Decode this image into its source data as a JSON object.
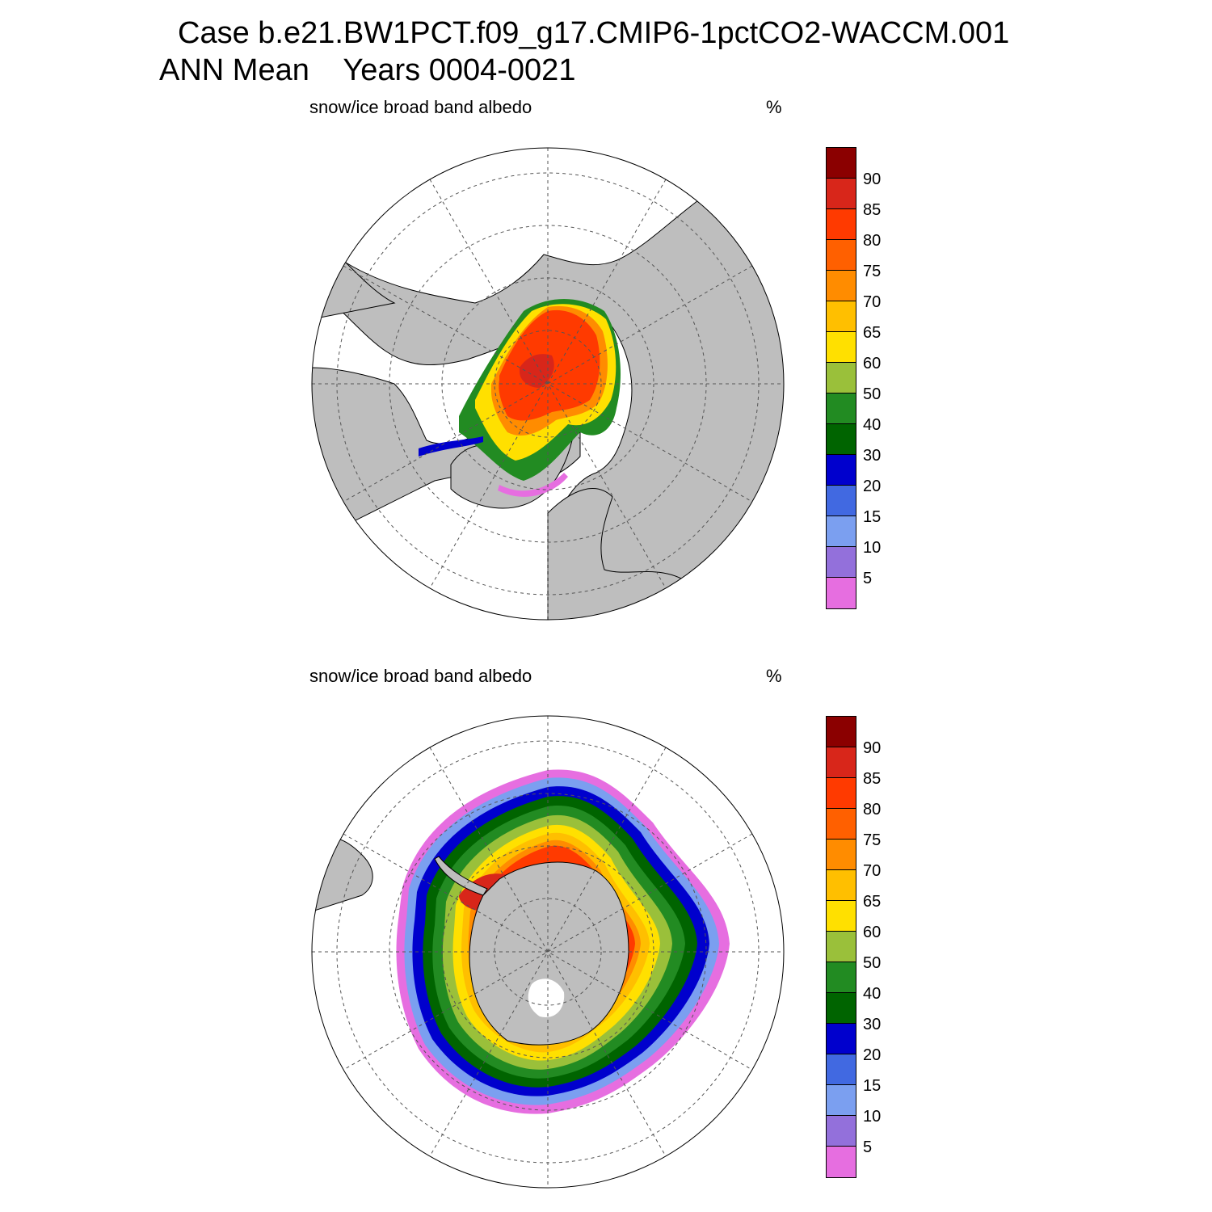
{
  "title": {
    "case": "Case b.e21.BW1PCT.f09_g17.CMIP6-1pctCO2-WACCM.001",
    "period_prefix": "ANN Mean",
    "period_years": "Years 0004-0021"
  },
  "panels": [
    {
      "id": "north",
      "variable_label": "snow/ice broad band albedo",
      "units": "%",
      "hemisphere": "Northern"
    },
    {
      "id": "south",
      "variable_label": "snow/ice broad band albedo",
      "units": "%",
      "hemisphere": "Southern"
    }
  ],
  "colorbar": {
    "labels": [
      "90",
      "85",
      "80",
      "75",
      "70",
      "65",
      "60",
      "50",
      "40",
      "30",
      "20",
      "15",
      "10",
      "5"
    ],
    "colors_top_to_bottom": [
      "#8b0000",
      "#d8261a",
      "#ff3a00",
      "#ff6000",
      "#ff8c00",
      "#ffbf00",
      "#ffe000",
      "#9ac03a",
      "#228b22",
      "#006400",
      "#0000cd",
      "#4169e1",
      "#7b9ff0",
      "#9370db",
      "#e66ee0"
    ]
  },
  "map_style": {
    "land_color": "#bebebe",
    "ocean_color": "#ffffff",
    "grid": "dashed"
  }
}
